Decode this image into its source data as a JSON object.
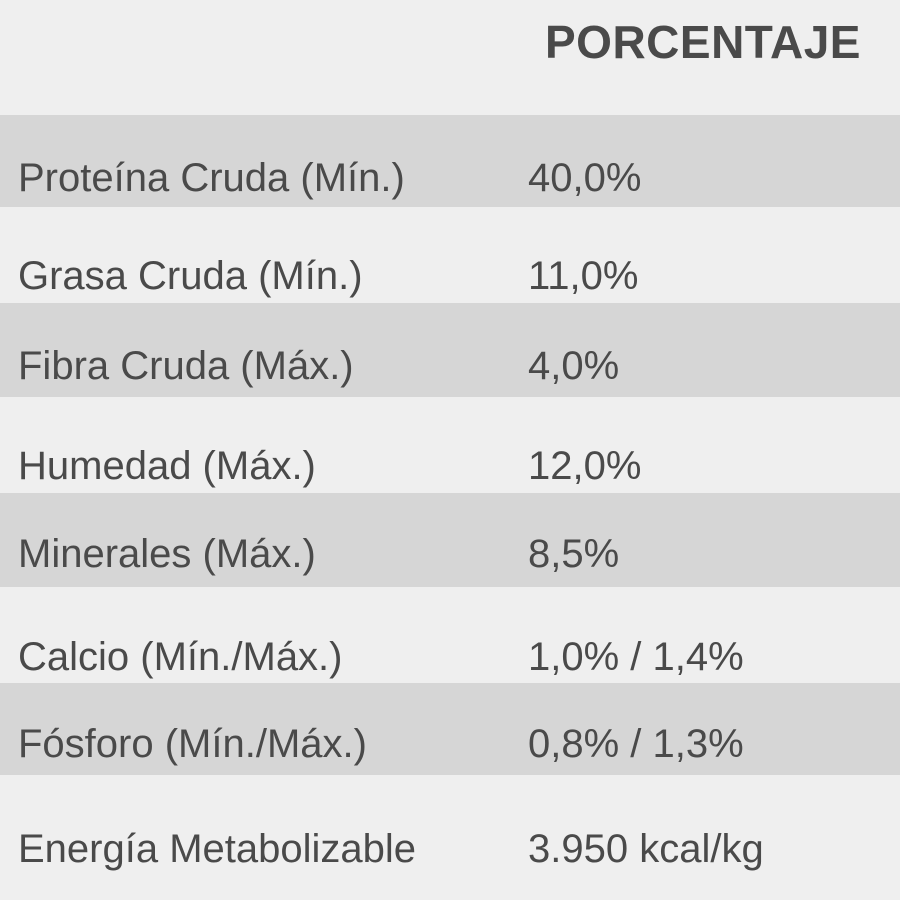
{
  "header": {
    "column_label": "PORCENTAJE"
  },
  "rows": [
    {
      "label": "Proteína Cruda (Mín.)",
      "value": "40,0%"
    },
    {
      "label": "Grasa Cruda (Mín.)",
      "value": "11,0%"
    },
    {
      "label": "Fibra Cruda (Máx.)",
      "value": "4,0%"
    },
    {
      "label": "Humedad (Máx.)",
      "value": "12,0%"
    },
    {
      "label": "Minerales (Máx.)",
      "value": "8,5%"
    },
    {
      "label": "Calcio (Mín./Máx.)",
      "value": "1,0% / 1,4%"
    },
    {
      "label": "Fósforo (Mín./Máx.)",
      "value": "0,8% / 1,3%"
    },
    {
      "label": "Energía Metabolizable",
      "value": "3.950 kcal/kg"
    }
  ],
  "colors": {
    "background": "#efefef",
    "band": "#d6d6d6",
    "text": "#4a4a4a"
  }
}
